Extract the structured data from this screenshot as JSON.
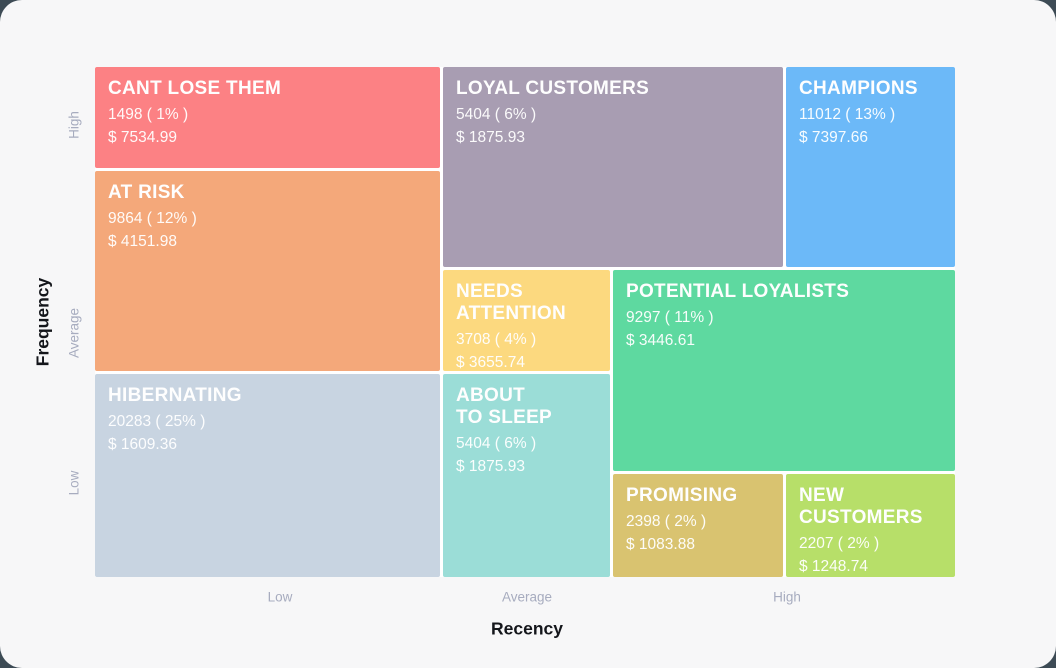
{
  "page": {
    "background_color": "#3D4B55",
    "card_background_color": "#F7F7F8",
    "segment_gap_color": "#FFFFFF"
  },
  "chart_data": {
    "type": "treemap",
    "title": "",
    "xlabel": "Recency",
    "ylabel": "Frequency",
    "x_ticks": [
      "Low",
      "Average",
      "High"
    ],
    "y_ticks": [
      "High",
      "Average",
      "Low"
    ],
    "legend": "none",
    "grid": false,
    "segments": [
      {
        "id": "cant-lose-them",
        "name": "CANT LOSE THEM",
        "count": 1498,
        "percent": 1,
        "monetary": 7534.99,
        "count_label": "1498 ( 1% )",
        "value_label": "$ 7534.99",
        "color": "#FC8184",
        "recency": "Low",
        "frequency": "High"
      },
      {
        "id": "loyal-customers",
        "name": "LOYAL CUSTOMERS",
        "count": 5404,
        "percent": 6,
        "monetary": 1875.93,
        "count_label": "5404 ( 6% )",
        "value_label": "$ 1875.93",
        "color": "#A89DB2",
        "recency": "Average",
        "frequency": "High"
      },
      {
        "id": "champions",
        "name": "CHAMPIONS",
        "count": 11012,
        "percent": 13,
        "monetary": 7397.66,
        "count_label": "11012 ( 13% )",
        "value_label": "$ 7397.66",
        "color": "#6CB9F8",
        "recency": "High",
        "frequency": "High"
      },
      {
        "id": "at-risk",
        "name": "AT RISK",
        "count": 9864,
        "percent": 12,
        "monetary": 4151.98,
        "count_label": "9864 ( 12% )",
        "value_label": "$ 4151.98",
        "color": "#F4A87A",
        "recency": "Low",
        "frequency": "Average"
      },
      {
        "id": "needs-attention",
        "name": "NEEDS\nATTENTION",
        "count": 3708,
        "percent": 4,
        "monetary": 3655.74,
        "count_label": "3708 ( 4% )",
        "value_label": "$ 3655.74",
        "color": "#FCD97F",
        "recency": "Average",
        "frequency": "Average"
      },
      {
        "id": "potential-loyalists",
        "name": "POTENTIAL LOYALISTS",
        "count": 9297,
        "percent": 11,
        "monetary": 3446.61,
        "count_label": "9297 ( 11% )",
        "value_label": "$ 3446.61",
        "color": "#5ED9A0",
        "recency": "High",
        "frequency": "Average"
      },
      {
        "id": "hibernating",
        "name": "HIBERNATING",
        "count": 20283,
        "percent": 25,
        "monetary": 1609.36,
        "count_label": "20283 ( 25% )",
        "value_label": "$ 1609.36",
        "color": "#C8D4E1",
        "recency": "Low",
        "frequency": "Low"
      },
      {
        "id": "about-to-sleep",
        "name": "ABOUT\nTO SLEEP",
        "count": 5404,
        "percent": 6,
        "monetary": 1875.93,
        "count_label": "5404 ( 6% )",
        "value_label": "$ 1875.93",
        "color": "#9BDDD7",
        "recency": "Average",
        "frequency": "Low"
      },
      {
        "id": "promising",
        "name": "PROMISING",
        "count": 2398,
        "percent": 2,
        "monetary": 1083.88,
        "count_label": "2398 ( 2% )",
        "value_label": "$ 1083.88",
        "color": "#D9C370",
        "recency": "High",
        "frequency": "Low"
      },
      {
        "id": "new-customers",
        "name": "NEW\nCUSTOMERS",
        "count": 2207,
        "percent": 2,
        "monetary": 1248.74,
        "count_label": "2207 ( 2% )",
        "value_label": "$ 1248.74",
        "color": "#B7DF69",
        "recency": "High",
        "frequency": "Low"
      }
    ]
  }
}
